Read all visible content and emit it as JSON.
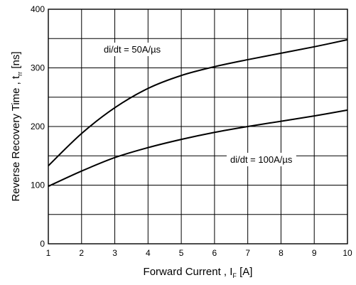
{
  "chart_data": {
    "type": "line",
    "xlabel": "Forward Current , I",
    "xlabel_sub": "F",
    "xlabel_unit": " [A]",
    "ylabel": "Reverse Recovery Time , t",
    "ylabel_sub": "rr",
    "ylabel_unit": " [ns]",
    "xlim": [
      1,
      10
    ],
    "ylim": [
      0,
      400
    ],
    "xticks": [
      1,
      2,
      3,
      4,
      5,
      6,
      7,
      8,
      9,
      10
    ],
    "yticks": [
      0,
      100,
      200,
      300,
      400
    ],
    "grid": true,
    "series": [
      {
        "name": "di/dt = 50A/µs",
        "x": [
          1,
          2,
          3,
          4,
          5,
          6,
          7,
          8,
          9,
          10
        ],
        "y": [
          133,
          188,
          232,
          265,
          287,
          302,
          314,
          325,
          336,
          348
        ]
      },
      {
        "name": "di/dt = 100A/µs",
        "x": [
          1,
          2,
          3,
          4,
          5,
          6,
          7,
          8,
          9,
          10
        ],
        "y": [
          98,
          124,
          147,
          164,
          178,
          190,
          200,
          209,
          218,
          228
        ]
      }
    ]
  }
}
